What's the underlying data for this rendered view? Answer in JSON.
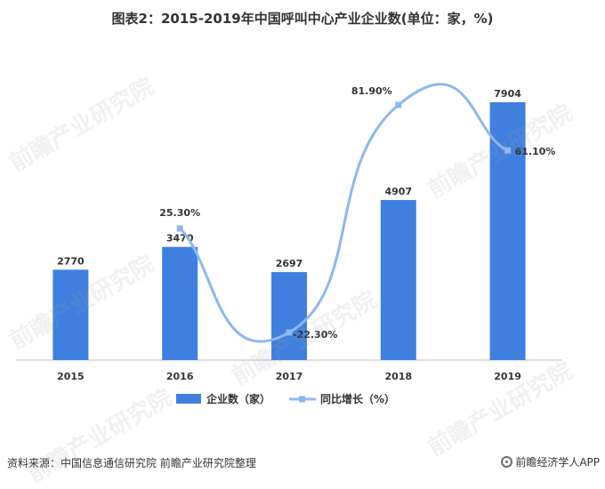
{
  "title": "图表2：2015-2019年中国呼叫中心产业企业数(单位：家，%)",
  "footer": {
    "source": "资料来源：中国信息通信研究院 前瞻产业研究院整理",
    "brand": "前瞻经济学人APP"
  },
  "watermark_text": "前瞻产业研究院",
  "colors": {
    "bar": "#3F7FE0",
    "line": "#8DB7F0",
    "axis": "#BFBFBF",
    "text": "#333333"
  },
  "chart_data": {
    "type": "bar+line",
    "categories": [
      "2015",
      "2016",
      "2017",
      "2018",
      "2019"
    ],
    "series": [
      {
        "name": "企业数（家）",
        "type": "bar",
        "values": [
          2770,
          3470,
          2697,
          4907,
          7904
        ],
        "labels": [
          "2770",
          "3470",
          "2697",
          "4907",
          "7904"
        ]
      },
      {
        "name": "同比增长（%）",
        "type": "line",
        "values": [
          null,
          25.3,
          -22.3,
          81.9,
          61.1
        ],
        "labels": [
          "",
          "25.30%",
          "-22.30%",
          "81.90%",
          "61.10%"
        ]
      }
    ],
    "legend_position": "bottom",
    "grid": false
  }
}
